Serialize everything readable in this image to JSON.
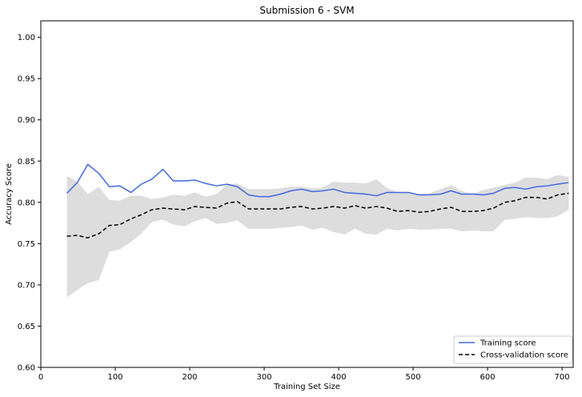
{
  "chart_data": {
    "type": "line",
    "title": "Submission 6 - SVM",
    "xlabel": "Training Set Size",
    "ylabel": "Accuracy Score",
    "xlim": [
      0,
      715
    ],
    "ylim": [
      0.6,
      1.02
    ],
    "xticks": [
      0,
      100,
      200,
      300,
      400,
      500,
      600,
      700
    ],
    "xtick_labels": [
      "0",
      "100",
      "200",
      "300",
      "400",
      "500",
      "600",
      "700"
    ],
    "yticks": [
      0.6,
      0.65,
      0.7,
      0.75,
      0.8,
      0.85,
      0.9,
      0.95,
      1.0
    ],
    "ytick_labels": [
      "0.60",
      "0.65",
      "0.70",
      "0.75",
      "0.80",
      "0.85",
      "0.90",
      "0.95",
      "1.00"
    ],
    "grid": false,
    "legend_position": "bottom-right",
    "x": [
      35,
      49,
      63,
      78,
      92,
      106,
      121,
      135,
      149,
      164,
      178,
      193,
      207,
      221,
      236,
      250,
      264,
      279,
      293,
      307,
      322,
      336,
      350,
      365,
      379,
      393,
      408,
      422,
      436,
      451,
      465,
      479,
      494,
      508,
      522,
      537,
      551,
      565,
      580,
      594,
      608,
      623,
      637,
      651,
      666,
      680,
      694,
      709
    ],
    "series": [
      {
        "name": "Training score",
        "style": "solid",
        "color": "#4169e1",
        "values": [
          0.811,
          0.824,
          0.846,
          0.835,
          0.819,
          0.82,
          0.812,
          0.822,
          0.828,
          0.84,
          0.826,
          0.826,
          0.827,
          0.823,
          0.82,
          0.822,
          0.819,
          0.809,
          0.807,
          0.807,
          0.81,
          0.814,
          0.816,
          0.813,
          0.814,
          0.816,
          0.812,
          0.811,
          0.81,
          0.808,
          0.812,
          0.812,
          0.812,
          0.809,
          0.809,
          0.81,
          0.814,
          0.81,
          0.81,
          0.809,
          0.811,
          0.817,
          0.818,
          0.816,
          0.819,
          0.82,
          0.822,
          0.824
        ]
      },
      {
        "name": "Cross-validation score",
        "style": "dashed",
        "color": "#000000",
        "values": [
          0.759,
          0.76,
          0.757,
          0.762,
          0.772,
          0.773,
          0.78,
          0.785,
          0.791,
          0.793,
          0.792,
          0.791,
          0.795,
          0.794,
          0.793,
          0.799,
          0.801,
          0.792,
          0.792,
          0.792,
          0.792,
          0.794,
          0.795,
          0.792,
          0.793,
          0.795,
          0.793,
          0.796,
          0.793,
          0.795,
          0.793,
          0.789,
          0.79,
          0.788,
          0.789,
          0.792,
          0.794,
          0.789,
          0.789,
          0.79,
          0.793,
          0.8,
          0.802,
          0.806,
          0.806,
          0.804,
          0.809,
          0.811
        ]
      }
    ],
    "band": {
      "color": "#dddddd",
      "upper": [
        0.832,
        0.825,
        0.81,
        0.819,
        0.803,
        0.802,
        0.808,
        0.808,
        0.804,
        0.806,
        0.809,
        0.808,
        0.812,
        0.807,
        0.81,
        0.822,
        0.823,
        0.816,
        0.816,
        0.816,
        0.817,
        0.819,
        0.819,
        0.817,
        0.818,
        0.825,
        0.824,
        0.824,
        0.823,
        0.828,
        0.817,
        0.813,
        0.812,
        0.81,
        0.811,
        0.816,
        0.821,
        0.814,
        0.81,
        0.815,
        0.818,
        0.821,
        0.824,
        0.83,
        0.83,
        0.828,
        0.833,
        0.831
      ],
      "lower": [
        0.685,
        0.694,
        0.702,
        0.706,
        0.74,
        0.743,
        0.752,
        0.762,
        0.776,
        0.779,
        0.773,
        0.771,
        0.777,
        0.781,
        0.774,
        0.775,
        0.778,
        0.768,
        0.768,
        0.768,
        0.769,
        0.77,
        0.772,
        0.767,
        0.769,
        0.764,
        0.761,
        0.768,
        0.762,
        0.761,
        0.768,
        0.766,
        0.768,
        0.767,
        0.767,
        0.768,
        0.768,
        0.765,
        0.766,
        0.765,
        0.765,
        0.779,
        0.78,
        0.782,
        0.781,
        0.781,
        0.783,
        0.791
      ]
    }
  }
}
